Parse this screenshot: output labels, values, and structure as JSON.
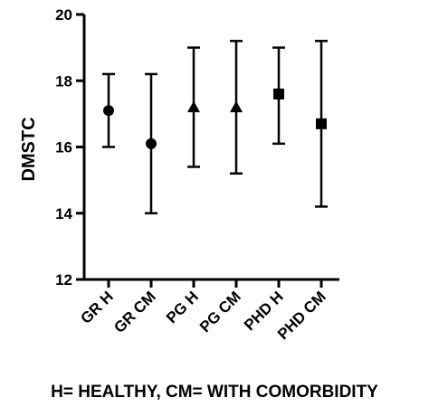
{
  "chart_data": {
    "type": "scatter",
    "title": "",
    "xlabel": "",
    "ylabel": "DMSTC",
    "ylim": [
      12,
      20
    ],
    "yticks": [
      12,
      14,
      16,
      18,
      20
    ],
    "grid": false,
    "legend": "none",
    "categories": [
      "GR H",
      "GR CM",
      "PG H",
      "PG CM",
      "PHD H",
      "PHD CM"
    ],
    "points": [
      {
        "category": "GR H",
        "value": 17.1,
        "low": 16.0,
        "high": 18.2,
        "marker": "circle"
      },
      {
        "category": "GR CM",
        "value": 16.1,
        "low": 14.0,
        "high": 18.2,
        "marker": "circle"
      },
      {
        "category": "PG H",
        "value": 17.2,
        "low": 15.4,
        "high": 19.0,
        "marker": "triangle"
      },
      {
        "category": "PG CM",
        "value": 17.2,
        "low": 15.2,
        "high": 19.2,
        "marker": "triangle"
      },
      {
        "category": "PHD H",
        "value": 17.6,
        "low": 16.1,
        "high": 19.0,
        "marker": "square"
      },
      {
        "category": "PHD CM",
        "value": 16.7,
        "low": 14.2,
        "high": 19.2,
        "marker": "square"
      }
    ],
    "annotation": "H= HEALTHY, CM= WITH COMORBIDITY",
    "color": "#000000"
  }
}
